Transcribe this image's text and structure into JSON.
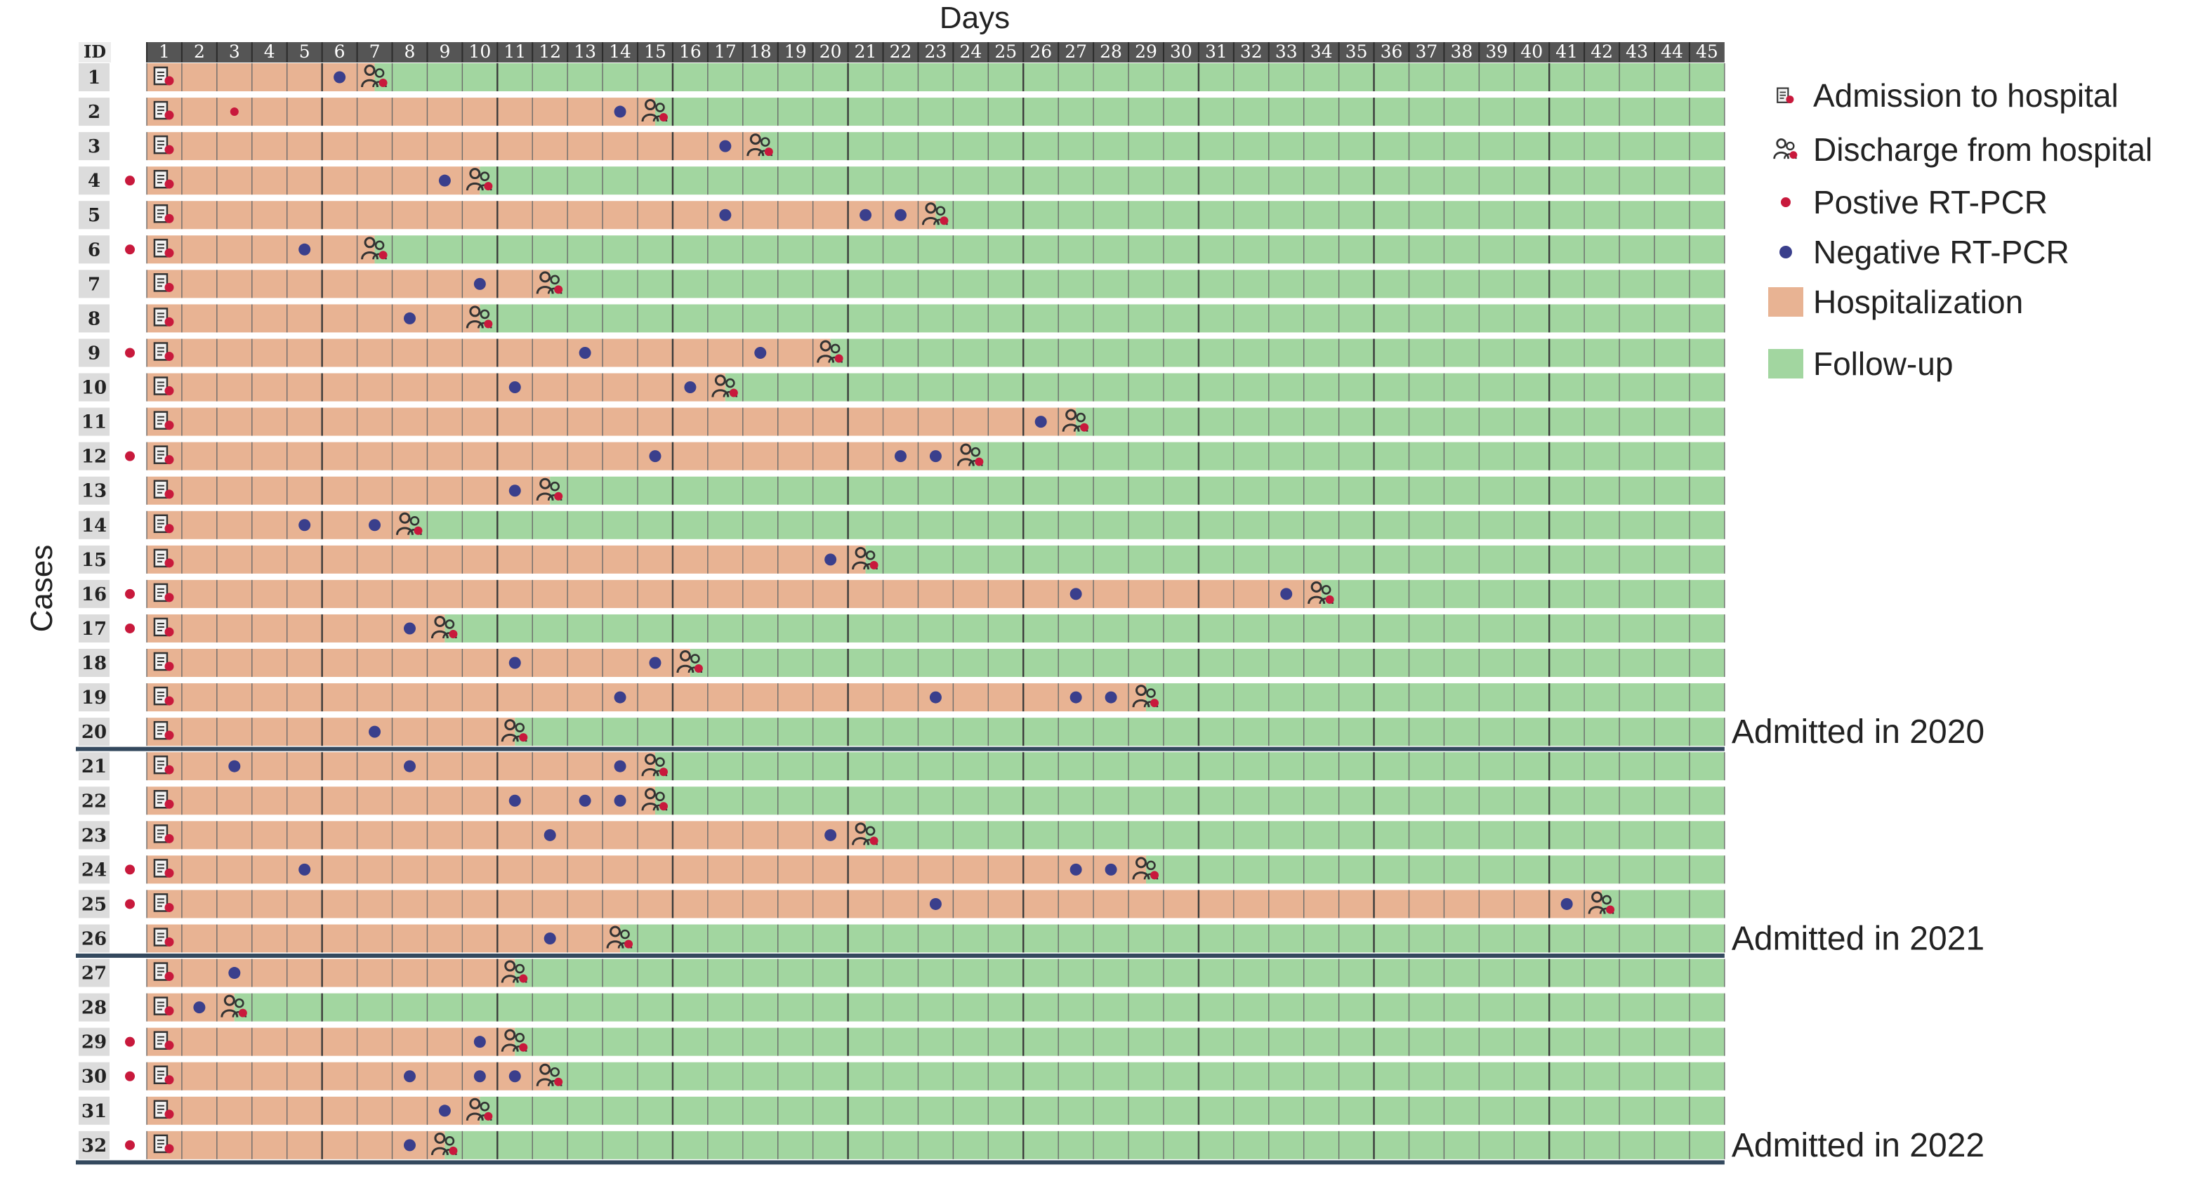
{
  "chart_data": {
    "type": "timeline",
    "title": "",
    "xlabel": "Days",
    "ylabel": "Cases",
    "id_header": "ID",
    "days": [
      1,
      2,
      3,
      4,
      5,
      6,
      7,
      8,
      9,
      10,
      11,
      12,
      13,
      14,
      15,
      16,
      17,
      18,
      19,
      20,
      21,
      22,
      23,
      24,
      25,
      26,
      27,
      28,
      29,
      30,
      31,
      32,
      33,
      34,
      35,
      36,
      37,
      38,
      39,
      40,
      41,
      42,
      43,
      44,
      45
    ],
    "legend": {
      "position": "right",
      "items": [
        {
          "key": "admission",
          "label": "Admission to hospital",
          "icon": "admission-icon"
        },
        {
          "key": "discharge",
          "label": "Discharge from hospital",
          "icon": "discharge-icon"
        },
        {
          "key": "positive",
          "label": "Postive RT-PCR",
          "color": "#c8193c"
        },
        {
          "key": "negative",
          "label": "Negative RT-PCR",
          "color": "#3a3f8c"
        },
        {
          "key": "hospitalization",
          "label": "Hospitalization",
          "color": "#e8b393"
        },
        {
          "key": "followup",
          "label": "Follow-up",
          "color": "#a2d6a0"
        }
      ]
    },
    "groups": [
      {
        "label": "Admitted in 2020",
        "first_id": 1,
        "last_id": 20
      },
      {
        "label": "Admitted in 2021",
        "first_id": 21,
        "last_id": 26
      },
      {
        "label": "Admitted in 2022",
        "first_id": 27,
        "last_id": 32
      }
    ],
    "colors": {
      "header": "#555555",
      "id_column": "#dcdcdc",
      "hospitalization": "#e8b393",
      "followup": "#a2d6a0",
      "positive": "#c8193c",
      "negative": "#3a3f8c",
      "separator": "#34495e",
      "grid": "#6b6b6b"
    },
    "cases": [
      {
        "id": 1,
        "positive": false,
        "admission_day": 1,
        "discharge_day": 7,
        "negative_days": [
          6
        ]
      },
      {
        "id": 2,
        "positive": false,
        "admission_day": 1,
        "discharge_day": 15,
        "negative_days": [
          14
        ],
        "positive_days": [
          3
        ]
      },
      {
        "id": 3,
        "positive": false,
        "admission_day": 1,
        "discharge_day": 18,
        "negative_days": [
          17
        ]
      },
      {
        "id": 4,
        "positive": true,
        "admission_day": 1,
        "discharge_day": 10,
        "negative_days": [
          9
        ]
      },
      {
        "id": 5,
        "positive": false,
        "admission_day": 1,
        "discharge_day": 23,
        "negative_days": [
          17,
          21,
          22
        ]
      },
      {
        "id": 6,
        "positive": true,
        "admission_day": 1,
        "discharge_day": 7,
        "negative_days": [
          5
        ]
      },
      {
        "id": 7,
        "positive": false,
        "admission_day": 1,
        "discharge_day": 12,
        "negative_days": [
          10
        ]
      },
      {
        "id": 8,
        "positive": false,
        "admission_day": 1,
        "discharge_day": 10,
        "negative_days": [
          8
        ]
      },
      {
        "id": 9,
        "positive": true,
        "admission_day": 1,
        "discharge_day": 20,
        "negative_days": [
          13,
          18
        ]
      },
      {
        "id": 10,
        "positive": false,
        "admission_day": 1,
        "discharge_day": 17,
        "negative_days": [
          11,
          16
        ]
      },
      {
        "id": 11,
        "positive": false,
        "admission_day": 1,
        "discharge_day": 27,
        "negative_days": [
          26
        ]
      },
      {
        "id": 12,
        "positive": true,
        "admission_day": 1,
        "discharge_day": 24,
        "negative_days": [
          15,
          22,
          23
        ]
      },
      {
        "id": 13,
        "positive": false,
        "admission_day": 1,
        "discharge_day": 12,
        "negative_days": [
          11
        ]
      },
      {
        "id": 14,
        "positive": false,
        "admission_day": 1,
        "discharge_day": 8,
        "negative_days": [
          5,
          7
        ]
      },
      {
        "id": 15,
        "positive": false,
        "admission_day": 1,
        "discharge_day": 21,
        "negative_days": [
          20
        ]
      },
      {
        "id": 16,
        "positive": true,
        "admission_day": 1,
        "discharge_day": 34,
        "negative_days": [
          27,
          33
        ]
      },
      {
        "id": 17,
        "positive": true,
        "admission_day": 1,
        "discharge_day": 9,
        "negative_days": [
          8
        ]
      },
      {
        "id": 18,
        "positive": false,
        "admission_day": 1,
        "discharge_day": 16,
        "negative_days": [
          11,
          15
        ]
      },
      {
        "id": 19,
        "positive": false,
        "admission_day": 1,
        "discharge_day": 29,
        "negative_days": [
          14,
          23,
          27,
          28
        ]
      },
      {
        "id": 20,
        "positive": false,
        "admission_day": 1,
        "discharge_day": 11,
        "negative_days": [
          7
        ]
      },
      {
        "id": 21,
        "positive": false,
        "admission_day": 1,
        "discharge_day": 15,
        "negative_days": [
          3,
          8,
          14
        ]
      },
      {
        "id": 22,
        "positive": false,
        "admission_day": 1,
        "discharge_day": 15,
        "negative_days": [
          11,
          13,
          14
        ]
      },
      {
        "id": 23,
        "positive": false,
        "admission_day": 1,
        "discharge_day": 21,
        "negative_days": [
          12,
          20
        ]
      },
      {
        "id": 24,
        "positive": true,
        "admission_day": 1,
        "discharge_day": 29,
        "negative_days": [
          5,
          27,
          28
        ]
      },
      {
        "id": 25,
        "positive": true,
        "admission_day": 1,
        "discharge_day": 42,
        "negative_days": [
          23,
          41
        ]
      },
      {
        "id": 26,
        "positive": false,
        "admission_day": 1,
        "discharge_day": 14,
        "negative_days": [
          12
        ]
      },
      {
        "id": 27,
        "positive": false,
        "admission_day": 1,
        "discharge_day": 11,
        "negative_days": [
          3
        ]
      },
      {
        "id": 28,
        "positive": false,
        "admission_day": 1,
        "discharge_day": 3,
        "negative_days": [
          2
        ]
      },
      {
        "id": 29,
        "positive": true,
        "admission_day": 1,
        "discharge_day": 11,
        "negative_days": [
          10
        ]
      },
      {
        "id": 30,
        "positive": true,
        "admission_day": 1,
        "discharge_day": 12,
        "negative_days": [
          8,
          10,
          11
        ]
      },
      {
        "id": 31,
        "positive": false,
        "admission_day": 1,
        "discharge_day": 10,
        "negative_days": [
          9
        ]
      },
      {
        "id": 32,
        "positive": true,
        "admission_day": 1,
        "discharge_day": 9,
        "negative_days": [
          8
        ]
      }
    ]
  }
}
